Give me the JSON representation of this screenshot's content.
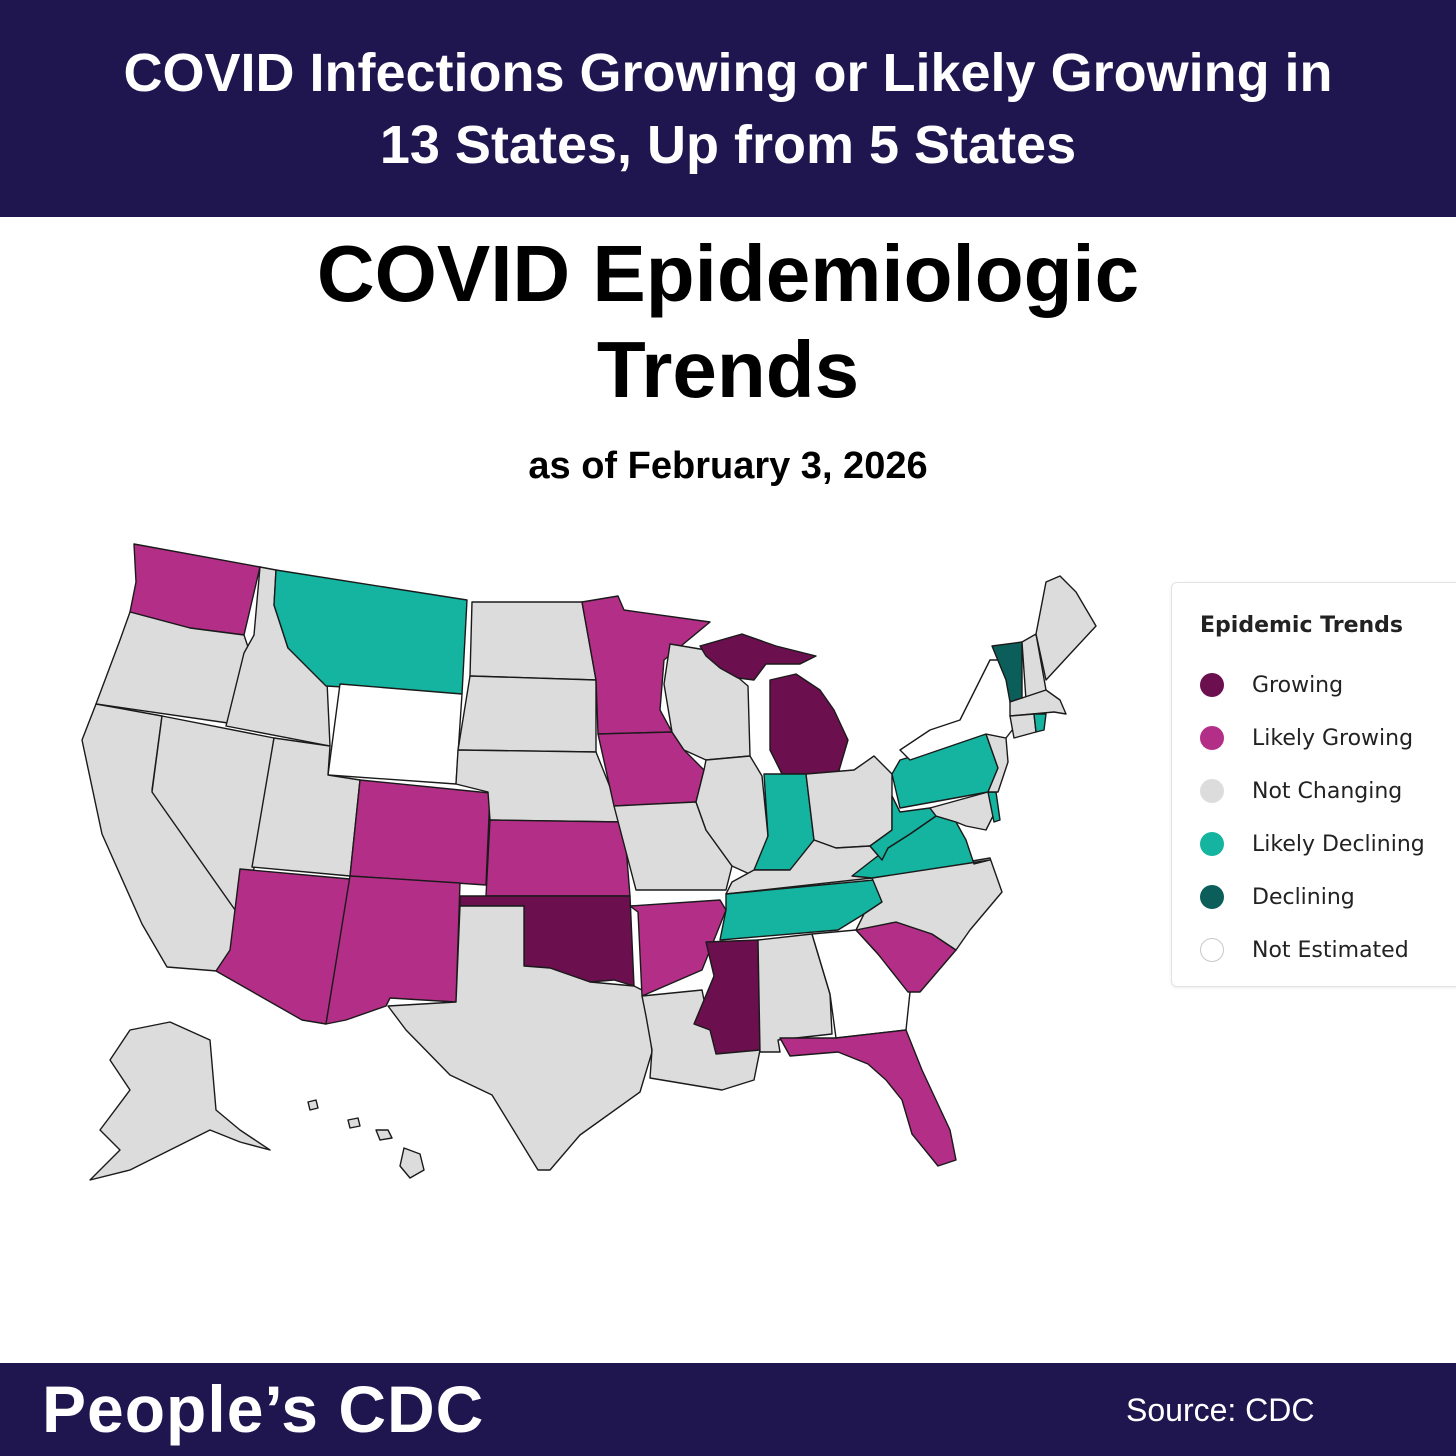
{
  "headline": {
    "line1": "COVID Infections Growing or Likely Growing in",
    "line2": "13 States, Up from 5 States"
  },
  "map": {
    "title_line1": "COVID Epidemiologic",
    "title_line2": "Trends",
    "subtitle": "as of February 3, 2026"
  },
  "legend": {
    "title": "Epidemic Trends",
    "items": [
      {
        "key": "growing",
        "label": "Growing",
        "color": "#6b0f4e"
      },
      {
        "key": "likely_growing",
        "label": "Likely Growing",
        "color": "#b32e87"
      },
      {
        "key": "not_changing",
        "label": "Not Changing",
        "color": "#dcdcdc"
      },
      {
        "key": "likely_declining",
        "label": "Likely Declining",
        "color": "#14b4a0"
      },
      {
        "key": "declining",
        "label": "Declining",
        "color": "#0b5e5a"
      },
      {
        "key": "not_estimated",
        "label": "Not Estimated",
        "color": "#ffffff"
      }
    ]
  },
  "states": {
    "WA": "likely_growing",
    "OR": "not_changing",
    "CA": "not_changing",
    "NV": "not_changing",
    "ID": "not_changing",
    "MT": "likely_declining",
    "WY": "not_estimated",
    "UT": "not_changing",
    "AZ": "likely_growing",
    "CO": "likely_growing",
    "NM": "likely_growing",
    "ND": "not_changing",
    "SD": "not_changing",
    "NE": "not_changing",
    "KS": "likely_growing",
    "OK": "growing",
    "TX": "not_changing",
    "MN": "likely_growing",
    "IA": "likely_growing",
    "MO": "not_changing",
    "AR": "likely_growing",
    "LA": "not_changing",
    "WI": "not_changing",
    "IL": "not_changing",
    "MI": "growing",
    "IN": "likely_declining",
    "OH": "not_changing",
    "KY": "not_changing",
    "TN": "likely_declining",
    "MS": "growing",
    "AL": "not_changing",
    "GA": "not_estimated",
    "FL": "likely_growing",
    "SC": "likely_growing",
    "NC": "not_changing",
    "VA": "likely_declining",
    "WV": "likely_declining",
    "PA": "likely_declining",
    "NY": "not_estimated",
    "VT": "declining",
    "NH": "not_changing",
    "ME": "not_changing",
    "MA": "not_changing",
    "CT": "not_changing",
    "RI": "likely_declining",
    "NJ": "not_changing",
    "DE": "likely_declining",
    "MD": "not_changing",
    "AK": "not_changing",
    "HI": "not_changing"
  },
  "footer": {
    "brand": "People’s CDC",
    "source": "Source: CDC"
  }
}
